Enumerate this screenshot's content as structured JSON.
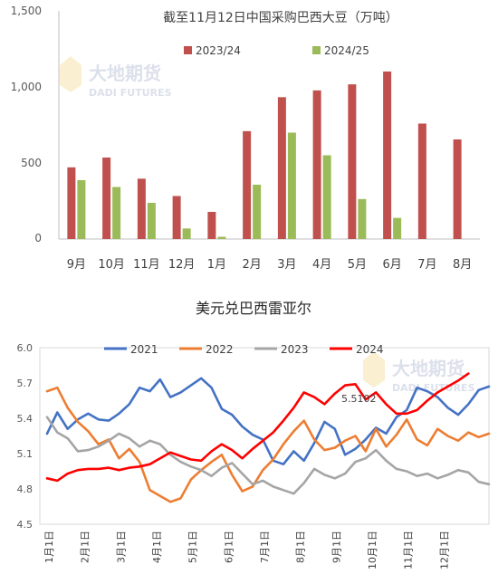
{
  "watermark": {
    "cn": "大地期货",
    "en": "DADI FUTURES"
  },
  "chart_data": [
    {
      "type": "bar",
      "title": "截至11月12日中国采购巴西大豆（万吨）",
      "categories": [
        "9月",
        "10月",
        "11月",
        "12月",
        "1月",
        "2月",
        "3月",
        "4月",
        "5月",
        "6月",
        "7月",
        "8月"
      ],
      "ylim": [
        0,
        1500
      ],
      "yticks": [
        0,
        500,
        1000,
        1500
      ],
      "ytick_labels": [
        "0",
        "500",
        "1,000",
        "1,500"
      ],
      "grid": false,
      "legend": "top",
      "series": [
        {
          "name": "2023/24",
          "color": "#C0504D",
          "values": [
            475,
            540,
            400,
            285,
            180,
            715,
            940,
            985,
            1025,
            1110,
            765,
            660
          ]
        },
        {
          "name": "2024/25",
          "color": "#9BBB59",
          "values": [
            390,
            345,
            240,
            70,
            15,
            360,
            705,
            555,
            265,
            140,
            null,
            null
          ]
        }
      ]
    },
    {
      "type": "line",
      "title": "美元兑巴西雷亚尔",
      "ylim": [
        4.5,
        6.0
      ],
      "yticks": [
        4.5,
        4.8,
        5.1,
        5.4,
        5.7,
        6.0
      ],
      "ytick_labels": [
        "4.5",
        "4.8",
        "5.1",
        "5.4",
        "5.7",
        "6.0"
      ],
      "x_ticks": [
        "1月1日",
        "2月1日",
        "3月1日",
        "4月1日",
        "5月1日",
        "6月1日",
        "7月1日",
        "8月1日",
        "9月1日",
        "10月1日",
        "11月1日",
        "12月1日"
      ],
      "grid": false,
      "legend": "top",
      "annotation": "5.5102",
      "series": [
        {
          "name": "2021",
          "color": "#4472C4",
          "values": [
            5.27,
            5.45,
            5.31,
            5.39,
            5.44,
            5.39,
            5.38,
            5.44,
            5.52,
            5.66,
            5.63,
            5.73,
            5.58,
            5.62,
            5.68,
            5.74,
            5.66,
            5.48,
            5.43,
            5.33,
            5.26,
            5.22,
            5.04,
            5.01,
            5.12,
            5.04,
            5.19,
            5.37,
            5.31,
            5.09,
            5.14,
            5.22,
            5.32,
            5.27,
            5.41,
            5.47,
            5.66,
            5.63,
            5.58,
            5.49,
            5.43,
            5.52,
            5.64,
            5.67
          ]
        },
        {
          "name": "2022",
          "color": "#ED7D31",
          "values": [
            5.63,
            5.66,
            5.49,
            5.37,
            5.29,
            5.18,
            5.22,
            5.06,
            5.14,
            5.03,
            4.79,
            4.74,
            4.69,
            4.72,
            4.88,
            4.96,
            5.03,
            5.09,
            4.92,
            4.78,
            4.82,
            4.96,
            5.05,
            5.18,
            5.29,
            5.38,
            5.22,
            5.13,
            5.15,
            5.21,
            5.25,
            5.12,
            5.31,
            5.16,
            5.26,
            5.39,
            5.22,
            5.17,
            5.31,
            5.25,
            5.21,
            5.28,
            5.24,
            5.27
          ]
        },
        {
          "name": "2023",
          "color": "#A5A5A5",
          "values": [
            5.41,
            5.28,
            5.23,
            5.12,
            5.13,
            5.16,
            5.21,
            5.27,
            5.23,
            5.16,
            5.21,
            5.18,
            5.09,
            5.03,
            4.99,
            4.96,
            4.91,
            4.98,
            5.02,
            4.93,
            4.84,
            4.87,
            4.82,
            4.79,
            4.76,
            4.85,
            4.97,
            4.92,
            4.89,
            4.93,
            5.03,
            5.06,
            5.13,
            5.04,
            4.97,
            4.95,
            4.91,
            4.93,
            4.89,
            4.92,
            4.96,
            4.94,
            4.86,
            4.84
          ]
        },
        {
          "name": "2024",
          "color": "#FF0000",
          "values": [
            4.89,
            4.87,
            4.93,
            4.96,
            4.97,
            4.97,
            4.98,
            4.96,
            4.98,
            4.99,
            5.01,
            5.06,
            5.11,
            5.08,
            5.05,
            5.04,
            5.12,
            5.18,
            5.13,
            5.06,
            5.14,
            5.21,
            5.28,
            5.38,
            5.49,
            5.62,
            5.58,
            5.52,
            5.61,
            5.68,
            5.69,
            5.56,
            5.62,
            5.52,
            5.44,
            5.44,
            5.47,
            5.55,
            5.62,
            5.67,
            5.72,
            5.78
          ]
        }
      ]
    }
  ]
}
